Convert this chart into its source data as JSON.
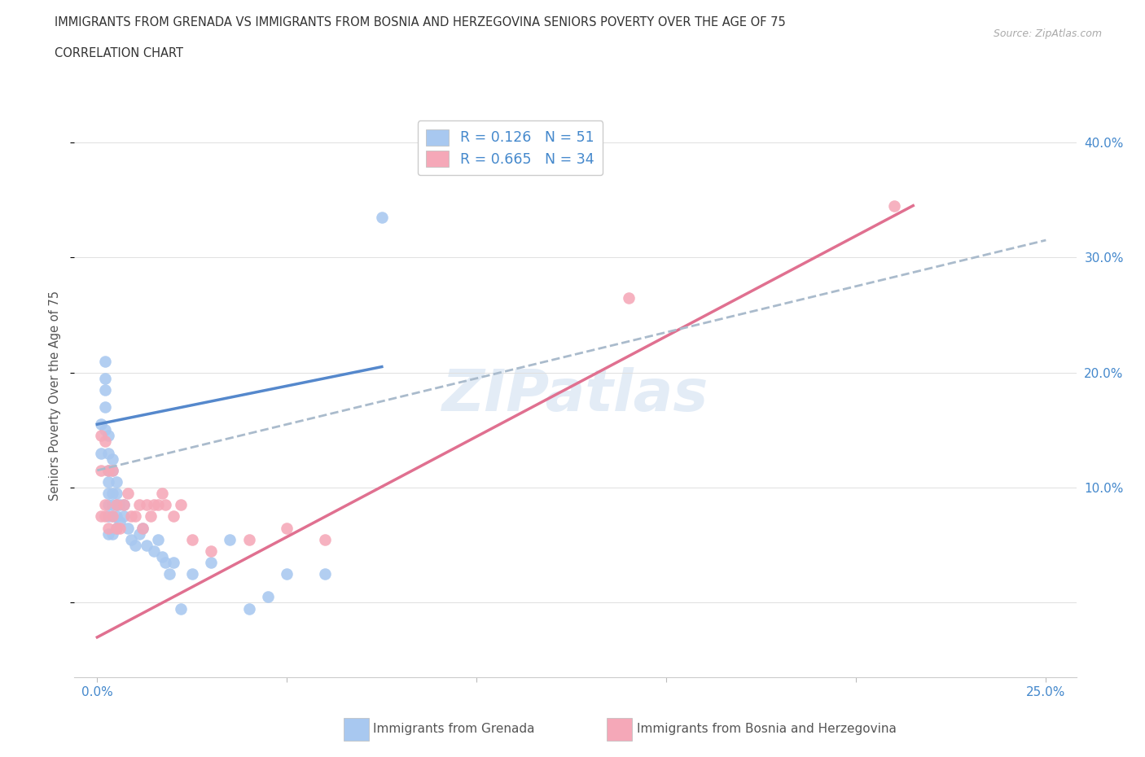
{
  "title_line1": "IMMIGRANTS FROM GRENADA VS IMMIGRANTS FROM BOSNIA AND HERZEGOVINA SENIORS POVERTY OVER THE AGE OF 75",
  "title_line2": "CORRELATION CHART",
  "source": "Source: ZipAtlas.com",
  "ylabel": "Seniors Poverty Over the Age of 75",
  "color_grenada": "#a8c8f0",
  "color_bosnia": "#f5a8b8",
  "color_grenada_line": "#5588cc",
  "color_bosnia_line": "#e07090",
  "color_dashed": "#aabbcc",
  "r1": "0.126",
  "n1": "51",
  "r2": "0.665",
  "n2": "34",
  "legend1_label": "Immigrants from Grenada",
  "legend2_label": "Immigrants from Bosnia and Herzegovina",
  "watermark": "ZIPatlas",
  "xlim": [
    -0.006,
    0.258
  ],
  "ylim": [
    -0.065,
    0.425
  ],
  "xticks": [
    0.0,
    0.05,
    0.1,
    0.15,
    0.2,
    0.25
  ],
  "xtick_labels": [
    "0.0%",
    "",
    "",
    "",
    "",
    "25.0%"
  ],
  "yticks_right": [
    0.1,
    0.2,
    0.3,
    0.4
  ],
  "ytick_labels_right": [
    "10.0%",
    "20.0%",
    "30.0%",
    "40.0%"
  ],
  "grenada_x": [
    0.001,
    0.001,
    0.002,
    0.002,
    0.002,
    0.002,
    0.002,
    0.003,
    0.003,
    0.003,
    0.003,
    0.003,
    0.003,
    0.003,
    0.003,
    0.004,
    0.004,
    0.004,
    0.004,
    0.004,
    0.004,
    0.005,
    0.005,
    0.005,
    0.005,
    0.005,
    0.006,
    0.006,
    0.007,
    0.007,
    0.008,
    0.009,
    0.01,
    0.011,
    0.012,
    0.013,
    0.015,
    0.016,
    0.017,
    0.018,
    0.019,
    0.02,
    0.022,
    0.025,
    0.03,
    0.035,
    0.04,
    0.045,
    0.05,
    0.06,
    0.075
  ],
  "grenada_y": [
    0.155,
    0.13,
    0.15,
    0.17,
    0.185,
    0.195,
    0.21,
    0.06,
    0.075,
    0.085,
    0.095,
    0.105,
    0.115,
    0.13,
    0.145,
    0.06,
    0.075,
    0.085,
    0.095,
    0.115,
    0.125,
    0.065,
    0.075,
    0.085,
    0.095,
    0.105,
    0.07,
    0.085,
    0.075,
    0.085,
    0.065,
    0.055,
    0.05,
    0.06,
    0.065,
    0.05,
    0.045,
    0.055,
    0.04,
    0.035,
    0.025,
    0.035,
    -0.005,
    0.025,
    0.035,
    0.055,
    -0.005,
    0.005,
    0.025,
    0.025,
    0.335
  ],
  "bosnia_x": [
    0.001,
    0.001,
    0.001,
    0.002,
    0.002,
    0.002,
    0.003,
    0.003,
    0.004,
    0.004,
    0.005,
    0.005,
    0.006,
    0.007,
    0.008,
    0.009,
    0.01,
    0.011,
    0.012,
    0.013,
    0.014,
    0.015,
    0.016,
    0.017,
    0.018,
    0.02,
    0.022,
    0.025,
    0.03,
    0.04,
    0.05,
    0.06,
    0.14,
    0.21
  ],
  "bosnia_y": [
    0.075,
    0.115,
    0.145,
    0.075,
    0.085,
    0.14,
    0.065,
    0.115,
    0.075,
    0.115,
    0.065,
    0.085,
    0.065,
    0.085,
    0.095,
    0.075,
    0.075,
    0.085,
    0.065,
    0.085,
    0.075,
    0.085,
    0.085,
    0.095,
    0.085,
    0.075,
    0.085,
    0.055,
    0.045,
    0.055,
    0.065,
    0.055,
    0.265,
    0.345
  ],
  "grenada_line_x": [
    0.0,
    0.075
  ],
  "grenada_line_y": [
    0.155,
    0.205
  ],
  "bosnia_line_x": [
    0.0,
    0.215
  ],
  "bosnia_line_y": [
    -0.03,
    0.345
  ],
  "dashed_line_x": [
    0.0,
    0.25
  ],
  "dashed_line_y": [
    0.115,
    0.315
  ]
}
